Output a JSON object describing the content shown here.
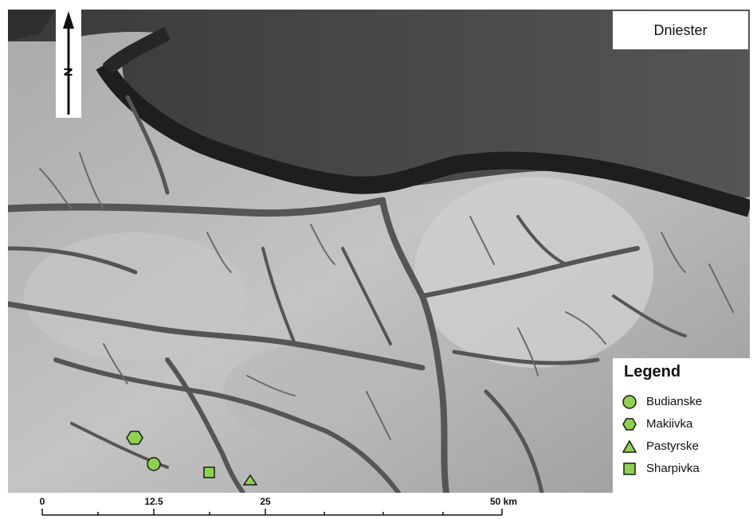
{
  "map": {
    "title": "Dniester",
    "north_label": "N",
    "terrain_colors": {
      "river_valley": "#2b2b2b",
      "lowland": "#4a4a4a",
      "plateau": "#bdbdbd",
      "highland": "#d6d6d6"
    },
    "symbol_color": "#8fd14f",
    "symbol_stroke": "#1a1a1a"
  },
  "legend": {
    "title": "Legend",
    "items": [
      {
        "label": "Budianske",
        "symbol": "circle"
      },
      {
        "label": "Makiivka",
        "symbol": "hexagon"
      },
      {
        "label": "Pastyrske",
        "symbol": "triangle"
      },
      {
        "label": "Sharpivka",
        "symbol": "square"
      }
    ]
  },
  "scale_bar": {
    "ticks": [
      "0",
      "12.5",
      "25",
      "50 km"
    ]
  },
  "sites": [
    {
      "name": "Budianske",
      "symbol": "circle"
    },
    {
      "name": "Makiivka",
      "symbol": "hexagon"
    },
    {
      "name": "Pastyrske",
      "symbol": "triangle"
    },
    {
      "name": "Sharpivka",
      "symbol": "square"
    }
  ]
}
